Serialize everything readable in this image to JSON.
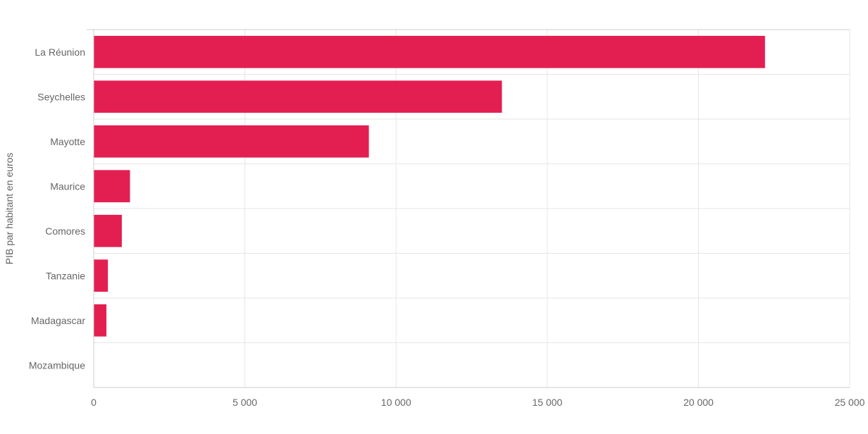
{
  "chart_data": {
    "type": "bar",
    "orientation": "horizontal",
    "categories": [
      "La Réunion",
      "Seychelles",
      "Mayotte",
      "Maurice",
      "Comores",
      "Tanzanie",
      "Madagascar",
      "Mozambique"
    ],
    "values": [
      22200,
      13500,
      9100,
      1200,
      930,
      470,
      420,
      0
    ],
    "ylabel": "PIB par habitant en euros",
    "xlim": [
      0,
      25000
    ],
    "x_ticks": [
      0,
      5000,
      10000,
      15000,
      20000,
      25000
    ],
    "x_tick_labels": [
      "0",
      "5 000",
      "10 000",
      "15 000",
      "20 000",
      "25 000"
    ],
    "grid": true,
    "legend": "none",
    "bar_color": "#e31f52"
  }
}
